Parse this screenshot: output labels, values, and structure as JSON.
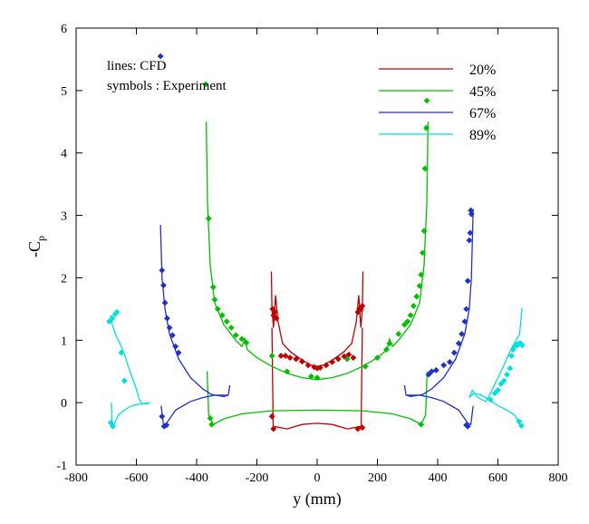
{
  "chart_data": {
    "type": "line",
    "xlabel": "y (mm)",
    "ylabel": "-C",
    "ylabel_sub": "p",
    "xlim": [
      -800,
      800
    ],
    "ylim": [
      -1,
      6
    ],
    "xticks": [
      -800,
      -600,
      -400,
      -200,
      0,
      200,
      400,
      600,
      800
    ],
    "yticks": [
      -1,
      0,
      1,
      2,
      3,
      4,
      5,
      6
    ],
    "grid": false,
    "annotations": [
      "lines: CFD",
      "symbols : Experiment"
    ],
    "legend": {
      "position": "top-right",
      "entries": [
        {
          "label": "20%",
          "color": "#c00000",
          "style": "line"
        },
        {
          "label": "45%",
          "color": "#00c000",
          "style": "line+marker"
        },
        {
          "label": "67%",
          "color": "#2030c8",
          "style": "line"
        },
        {
          "label": "89%",
          "color": "#00e0e0",
          "style": "line"
        }
      ]
    },
    "series": [
      {
        "name": "20%",
        "color": "#c00000",
        "cfd_upper": [
          [
            -152,
            2.1
          ],
          [
            -150,
            1.5
          ],
          [
            -145,
            1.2
          ],
          [
            -138,
            1.72
          ],
          [
            -130,
            1.3
          ],
          [
            -115,
            0.95
          ],
          [
            -90,
            0.82
          ],
          [
            -50,
            0.68
          ],
          [
            -20,
            0.6
          ],
          [
            0,
            0.58
          ],
          [
            20,
            0.6
          ],
          [
            50,
            0.68
          ],
          [
            90,
            0.82
          ],
          [
            115,
            0.95
          ],
          [
            130,
            1.3
          ],
          [
            138,
            1.72
          ],
          [
            145,
            1.2
          ],
          [
            150,
            1.5
          ],
          [
            152,
            2.1
          ]
        ],
        "cfd_lower": [
          [
            -150,
            1.2
          ],
          [
            -146,
            -0.38
          ],
          [
            -100,
            -0.42
          ],
          [
            -50,
            -0.35
          ],
          [
            0,
            -0.33
          ],
          [
            50,
            -0.35
          ],
          [
            100,
            -0.42
          ],
          [
            146,
            -0.38
          ],
          [
            150,
            1.2
          ]
        ],
        "exp": [
          [
            -148,
            1.5
          ],
          [
            -145,
            1.4
          ],
          [
            -140,
            1.45
          ],
          [
            -135,
            1.35
          ],
          [
            -150,
            -0.22
          ],
          [
            -145,
            -0.42
          ],
          [
            -120,
            0.75
          ],
          [
            -105,
            0.75
          ],
          [
            -90,
            0.72
          ],
          [
            -70,
            0.7
          ],
          [
            -50,
            0.66
          ],
          [
            -30,
            0.6
          ],
          [
            -10,
            0.57
          ],
          [
            0,
            0.55
          ],
          [
            10,
            0.56
          ],
          [
            30,
            0.6
          ],
          [
            50,
            0.65
          ],
          [
            70,
            0.7
          ],
          [
            90,
            0.74
          ],
          [
            105,
            0.77
          ],
          [
            120,
            0.72
          ],
          [
            135,
            1.45
          ],
          [
            140,
            1.5
          ],
          [
            145,
            1.5
          ],
          [
            150,
            1.55
          ],
          [
            135,
            -0.42
          ],
          [
            150,
            -0.4
          ]
        ]
      },
      {
        "name": "45%",
        "color": "#00c000",
        "cfd_upper": [
          [
            -368,
            4.5
          ],
          [
            -364,
            3.2
          ],
          [
            -355,
            2.2
          ],
          [
            -340,
            1.6
          ],
          [
            -310,
            1.25
          ],
          [
            -270,
            1.0
          ],
          [
            -250,
            0.9
          ],
          [
            -240,
            1.02
          ],
          [
            -232,
            0.85
          ],
          [
            -200,
            0.72
          ],
          [
            -150,
            0.58
          ],
          [
            -100,
            0.47
          ],
          [
            -50,
            0.4
          ],
          [
            0,
            0.37
          ],
          [
            50,
            0.4
          ],
          [
            100,
            0.47
          ],
          [
            150,
            0.58
          ],
          [
            200,
            0.72
          ],
          [
            232,
            0.85
          ],
          [
            240,
            1.02
          ],
          [
            250,
            0.9
          ],
          [
            270,
            1.0
          ],
          [
            310,
            1.25
          ],
          [
            340,
            1.6
          ],
          [
            355,
            2.2
          ],
          [
            364,
            3.2
          ],
          [
            368,
            4.5
          ]
        ],
        "cfd_lower": [
          [
            -365,
            0.5
          ],
          [
            -360,
            -0.2
          ],
          [
            -345,
            -0.35
          ],
          [
            -310,
            -0.26
          ],
          [
            -250,
            -0.18
          ],
          [
            -150,
            -0.13
          ],
          [
            0,
            -0.12
          ],
          [
            150,
            -0.13
          ],
          [
            250,
            -0.18
          ],
          [
            310,
            -0.26
          ],
          [
            345,
            -0.35
          ],
          [
            360,
            -0.2
          ],
          [
            365,
            0.5
          ]
        ],
        "exp": [
          [
            -370,
            5.1
          ],
          [
            -360,
            2.95
          ],
          [
            -355,
            -0.25
          ],
          [
            -350,
            -0.35
          ],
          [
            -345,
            1.85
          ],
          [
            -340,
            1.65
          ],
          [
            -330,
            1.5
          ],
          [
            -315,
            1.4
          ],
          [
            -300,
            1.3
          ],
          [
            -285,
            1.2
          ],
          [
            -270,
            1.08
          ],
          [
            -250,
            1.02
          ],
          [
            -235,
            0.96
          ],
          [
            -150,
            0.75
          ],
          [
            -100,
            0.5
          ],
          [
            -20,
            0.42
          ],
          [
            0,
            0.4
          ],
          [
            100,
            0.7
          ],
          [
            160,
            0.58
          ],
          [
            200,
            0.72
          ],
          [
            230,
            0.85
          ],
          [
            240,
            0.95
          ],
          [
            270,
            1.1
          ],
          [
            290,
            1.25
          ],
          [
            300,
            1.3
          ],
          [
            310,
            1.4
          ],
          [
            320,
            1.55
          ],
          [
            330,
            1.7
          ],
          [
            340,
            1.87
          ],
          [
            345,
            2.05
          ],
          [
            350,
            2.4
          ],
          [
            355,
            2.75
          ],
          [
            358,
            3.75
          ],
          [
            362,
            4.4
          ],
          [
            345,
            -0.35
          ]
        ]
      },
      {
        "name": "67%",
        "color": "#2030c8",
        "cfd_upper": [
          [
            -520,
            2.85
          ],
          [
            -515,
            2.0
          ],
          [
            -505,
            1.5
          ],
          [
            -490,
            1.1
          ],
          [
            -460,
            0.7
          ],
          [
            -420,
            0.4
          ],
          [
            -380,
            0.22
          ],
          [
            -350,
            0.13
          ],
          [
            -310,
            0.1
          ],
          [
            -295,
            0.12
          ],
          [
            -290,
            0.28
          ]
        ],
        "cfd_lower": [
          [
            -518,
            -0.05
          ],
          [
            -510,
            -0.35
          ],
          [
            -500,
            -0.33
          ],
          [
            -470,
            -0.12
          ],
          [
            -420,
            0.02
          ],
          [
            -380,
            0.08
          ],
          [
            -340,
            0.12
          ],
          [
            -295,
            0.12
          ]
        ],
        "exp": [
          [
            -520,
            5.55
          ],
          [
            -515,
            2.12
          ],
          [
            -510,
            1.88
          ],
          [
            -505,
            1.6
          ],
          [
            -498,
            1.35
          ],
          [
            -490,
            1.2
          ],
          [
            -480,
            1.08
          ],
          [
            -470,
            0.9
          ],
          [
            -460,
            0.8
          ],
          [
            -515,
            -0.22
          ],
          [
            -508,
            -0.38
          ],
          [
            -500,
            -0.36
          ]
        ],
        "cfd_upper_r": [
          [
            290,
            0.28
          ],
          [
            295,
            0.12
          ],
          [
            310,
            0.1
          ],
          [
            350,
            0.13
          ],
          [
            380,
            0.22
          ],
          [
            420,
            0.4
          ],
          [
            460,
            0.7
          ],
          [
            490,
            1.1
          ],
          [
            505,
            1.5
          ],
          [
            512,
            2.0
          ],
          [
            518,
            3.1
          ]
        ],
        "cfd_lower_r": [
          [
            295,
            0.12
          ],
          [
            340,
            0.12
          ],
          [
            380,
            0.08
          ],
          [
            420,
            0.02
          ],
          [
            470,
            -0.12
          ],
          [
            500,
            -0.33
          ],
          [
            510,
            -0.35
          ],
          [
            518,
            -0.05
          ]
        ],
        "exp_r": [
          [
            370,
            0.45
          ],
          [
            380,
            0.5
          ],
          [
            395,
            0.52
          ],
          [
            420,
            0.6
          ],
          [
            440,
            0.65
          ],
          [
            455,
            0.8
          ],
          [
            470,
            0.95
          ],
          [
            480,
            1.1
          ],
          [
            490,
            1.3
          ],
          [
            495,
            1.5
          ],
          [
            500,
            1.95
          ],
          [
            505,
            2.6
          ],
          [
            508,
            2.72
          ],
          [
            510,
            3.08
          ],
          [
            512,
            3.02
          ],
          [
            495,
            -0.36
          ],
          [
            500,
            -0.38
          ]
        ]
      },
      {
        "name": "89%",
        "color": "#00e0e0",
        "cfd_upper": [
          [
            -685,
            1.4
          ],
          [
            -680,
            1.25
          ],
          [
            -670,
            1.1
          ],
          [
            -655,
            0.95
          ],
          [
            -640,
            0.78
          ],
          [
            -625,
            0.55
          ],
          [
            -610,
            0.35
          ],
          [
            -600,
            0.22
          ],
          [
            -590,
            0.05
          ],
          [
            -580,
            -0.02
          ],
          [
            -565,
            -0.02
          ],
          [
            -555,
            0.0
          ]
        ],
        "cfd_lower": [
          [
            -683,
            0.0
          ],
          [
            -680,
            -0.38
          ],
          [
            -672,
            -0.33
          ],
          [
            -660,
            -0.2
          ],
          [
            -640,
            -0.12
          ],
          [
            -620,
            -0.06
          ],
          [
            -600,
            -0.03
          ],
          [
            -580,
            -0.02
          ],
          [
            -560,
            0.0
          ]
        ],
        "exp": [
          [
            -690,
            1.3
          ],
          [
            -680,
            1.35
          ],
          [
            -670,
            1.42
          ],
          [
            -665,
            1.45
          ],
          [
            -650,
            0.8
          ],
          [
            -640,
            0.35
          ],
          [
            -685,
            -0.32
          ],
          [
            -678,
            -0.38
          ]
        ],
        "cfd_upper_r": [
          [
            505,
            0.08
          ],
          [
            515,
            0.2
          ],
          [
            530,
            0.1
          ],
          [
            545,
            0.05
          ],
          [
            560,
            0.02
          ],
          [
            575,
            0.15
          ],
          [
            590,
            0.3
          ],
          [
            605,
            0.45
          ],
          [
            620,
            0.6
          ],
          [
            640,
            0.82
          ],
          [
            660,
            1.0
          ],
          [
            672,
            1.1
          ],
          [
            680,
            1.52
          ]
        ],
        "cfd_lower_r": [
          [
            505,
            0.08
          ],
          [
            520,
            0.15
          ],
          [
            545,
            0.12
          ],
          [
            570,
            0.05
          ],
          [
            600,
            -0.05
          ],
          [
            630,
            -0.12
          ],
          [
            655,
            -0.2
          ],
          [
            668,
            -0.3
          ],
          [
            675,
            -0.38
          ]
        ],
        "exp_r": [
          [
            575,
            0.05
          ],
          [
            590,
            0.15
          ],
          [
            600,
            0.2
          ],
          [
            610,
            0.3
          ],
          [
            620,
            0.35
          ],
          [
            630,
            0.45
          ],
          [
            640,
            0.55
          ],
          [
            645,
            0.75
          ],
          [
            650,
            0.85
          ],
          [
            655,
            0.9
          ],
          [
            660,
            0.93
          ],
          [
            665,
            0.92
          ],
          [
            670,
            0.95
          ],
          [
            675,
            0.95
          ],
          [
            680,
            0.92
          ],
          [
            670,
            -0.3
          ],
          [
            678,
            -0.37
          ]
        ]
      }
    ]
  }
}
